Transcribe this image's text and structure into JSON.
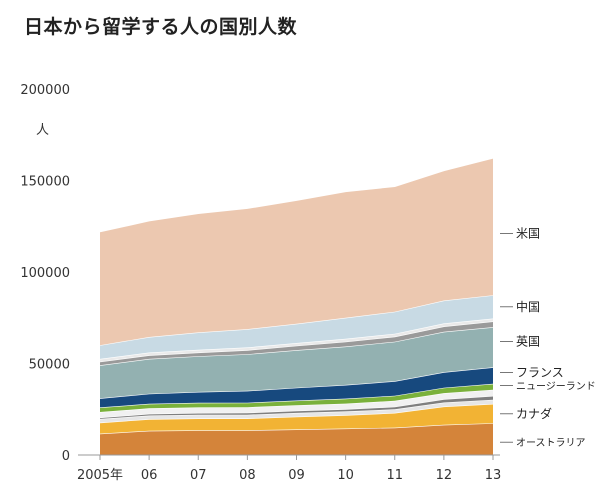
{
  "chart_data": {
    "type": "area",
    "title": "日本から留学する人の国別人数",
    "ylabel": "人",
    "xlabel": "",
    "x": [
      "2005年",
      "06",
      "07",
      "08",
      "09",
      "10",
      "11",
      "12",
      "13"
    ],
    "y_ticks": [
      "200000",
      "150000",
      "100000",
      "50000",
      "0"
    ],
    "ylim": [
      0,
      200000
    ],
    "stacked": true,
    "grid": false,
    "legend": "right-side labels",
    "series": [
      {
        "name": "オーストラリア",
        "values": [
          11700,
          13200,
          13500,
          13500,
          14000,
          14500,
          15000,
          16500,
          17400
        ],
        "color": "#d4843a"
      },
      {
        "name": "カナダ",
        "values": [
          6000,
          6400,
          6500,
          6500,
          7000,
          7300,
          8000,
          10000,
          10500
        ],
        "color": "#f2b334"
      },
      {
        "name": "",
        "values": [
          2000,
          2000,
          2000,
          2000,
          2000,
          2000,
          2000,
          2200,
          2300
        ],
        "color": "#e6e6e6"
      },
      {
        "name": "",
        "values": [
          800,
          900,
          1000,
          1100,
          1200,
          1300,
          1400,
          1800,
          2100
        ],
        "color": "#7f7f7f"
      },
      {
        "name": "",
        "values": [
          3000,
          3000,
          3000,
          3000,
          3000,
          3000,
          3200,
          3300,
          3400
        ],
        "color": "#f1f1f1"
      },
      {
        "name": "ニュージーランド",
        "values": [
          2500,
          2500,
          2500,
          2500,
          2600,
          2700,
          2800,
          3000,
          3200
        ],
        "color": "#7ab13b"
      },
      {
        "name": "フランス",
        "values": [
          5000,
          5500,
          6000,
          6500,
          7000,
          7500,
          8000,
          8500,
          9000
        ],
        "color": "#17497e"
      },
      {
        "name": "英国",
        "values": [
          18000,
          19000,
          19500,
          20000,
          20500,
          21000,
          21500,
          22000,
          22000
        ],
        "color": "#93b1b1"
      },
      {
        "name": "",
        "values": [
          2000,
          2000,
          2000,
          2200,
          2400,
          2600,
          2800,
          3000,
          3100
        ],
        "color": "#9a9a9a"
      },
      {
        "name": "",
        "values": [
          1500,
          1500,
          1500,
          1500,
          1500,
          1600,
          1600,
          1600,
          1600
        ],
        "color": "#eaeaea"
      },
      {
        "name": "中国",
        "values": [
          7500,
          8500,
          9500,
          10000,
          10500,
          11500,
          12000,
          12500,
          12700
        ],
        "color": "#c8dae4"
      },
      {
        "name": "米国",
        "values": [
          62000,
          63500,
          65000,
          66000,
          67500,
          69000,
          68500,
          71000,
          75000
        ],
        "color": "#ecc8b0"
      }
    ],
    "label_targets": [
      121000,
      81000,
      62000,
      45000,
      38000,
      22500,
      7000
    ]
  }
}
